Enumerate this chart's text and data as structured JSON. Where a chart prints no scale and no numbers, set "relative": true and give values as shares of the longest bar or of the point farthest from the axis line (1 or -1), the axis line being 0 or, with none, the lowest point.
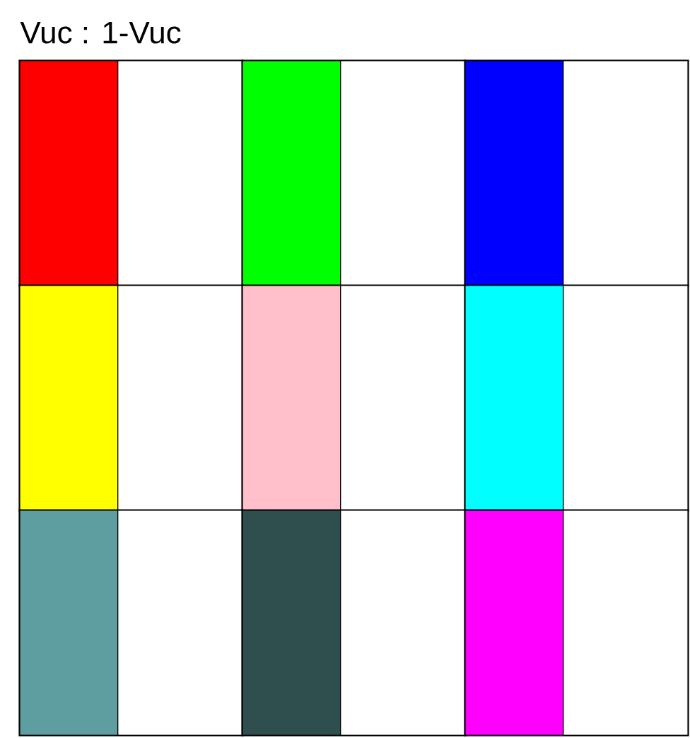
{
  "chart_data": [
    {
      "type": "bar",
      "title": "Vuc : 1-Vuc",
      "orientation": "horizontal",
      "stacked": true,
      "relative": true,
      "categories": [
        null
      ],
      "series": [
        {
          "color": "#ff0000",
          "values": [
            0.44
          ]
        },
        {
          "color": "#ffffff",
          "values": [
            0.56
          ]
        }
      ]
    },
    {
      "type": "bar",
      "orientation": "horizontal",
      "stacked": true,
      "relative": true,
      "categories": [
        null
      ],
      "series": [
        {
          "color": "#00ff00",
          "values": [
            0.44
          ]
        },
        {
          "color": "#ffffff",
          "values": [
            0.56
          ]
        }
      ]
    },
    {
      "type": "bar",
      "orientation": "horizontal",
      "stacked": true,
      "relative": true,
      "categories": [
        null
      ],
      "series": [
        {
          "color": "#0000ff",
          "values": [
            0.44
          ]
        },
        {
          "color": "#ffffff",
          "values": [
            0.56
          ]
        }
      ]
    },
    {
      "type": "bar",
      "orientation": "horizontal",
      "stacked": true,
      "relative": true,
      "categories": [
        null
      ],
      "series": [
        {
          "color": "#ffff00",
          "values": [
            0.44
          ]
        },
        {
          "color": "#ffffff",
          "values": [
            0.56
          ]
        }
      ]
    },
    {
      "type": "bar",
      "orientation": "horizontal",
      "stacked": true,
      "relative": true,
      "categories": [
        null
      ],
      "series": [
        {
          "color": "#ffc0cb",
          "values": [
            0.44
          ]
        },
        {
          "color": "#ffffff",
          "values": [
            0.56
          ]
        }
      ]
    },
    {
      "type": "bar",
      "orientation": "horizontal",
      "stacked": true,
      "relative": true,
      "categories": [
        null
      ],
      "series": [
        {
          "color": "#00ffff",
          "values": [
            0.44
          ]
        },
        {
          "color": "#ffffff",
          "values": [
            0.56
          ]
        }
      ]
    },
    {
      "type": "bar",
      "orientation": "horizontal",
      "stacked": true,
      "relative": true,
      "categories": [
        null
      ],
      "series": [
        {
          "color": "#5f9ea0",
          "values": [
            0.44
          ]
        },
        {
          "color": "#ffffff",
          "values": [
            0.56
          ]
        }
      ]
    },
    {
      "type": "bar",
      "orientation": "horizontal",
      "stacked": true,
      "relative": true,
      "categories": [
        null
      ],
      "series": [
        {
          "color": "#2f4f4f",
          "values": [
            0.44
          ]
        },
        {
          "color": "#ffffff",
          "values": [
            0.56
          ]
        }
      ]
    },
    {
      "type": "bar",
      "orientation": "horizontal",
      "stacked": true,
      "relative": true,
      "categories": [
        null
      ],
      "series": [
        {
          "color": "#ff00ff",
          "values": [
            0.44
          ]
        },
        {
          "color": "#ffffff",
          "values": [
            0.56
          ]
        }
      ]
    }
  ]
}
